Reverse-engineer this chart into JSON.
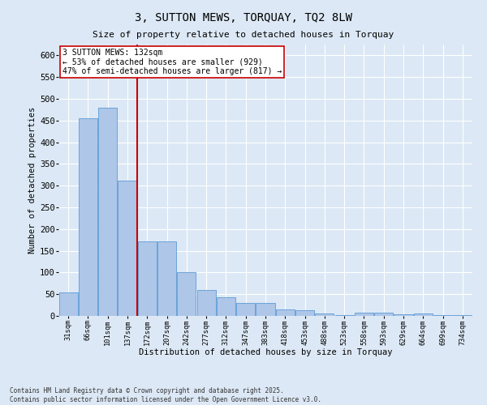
{
  "title": "3, SUTTON MEWS, TORQUAY, TQ2 8LW",
  "subtitle": "Size of property relative to detached houses in Torquay",
  "xlabel": "Distribution of detached houses by size in Torquay",
  "ylabel": "Number of detached properties",
  "footer_line1": "Contains HM Land Registry data © Crown copyright and database right 2025.",
  "footer_line2": "Contains public sector information licensed under the Open Government Licence v3.0.",
  "property_label": "3 SUTTON MEWS: 132sqm",
  "annotation_line2": "← 53% of detached houses are smaller (929)",
  "annotation_line3": "47% of semi-detached houses are larger (817) →",
  "bar_labels": [
    "31sqm",
    "66sqm",
    "101sqm",
    "137sqm",
    "172sqm",
    "207sqm",
    "242sqm",
    "277sqm",
    "312sqm",
    "347sqm",
    "383sqm",
    "418sqm",
    "453sqm",
    "488sqm",
    "523sqm",
    "558sqm",
    "593sqm",
    "629sqm",
    "664sqm",
    "699sqm",
    "734sqm"
  ],
  "bar_centers": [
    0,
    1,
    2,
    3,
    4,
    5,
    6,
    7,
    8,
    9,
    10,
    11,
    12,
    13,
    14,
    15,
    16,
    17,
    18,
    19,
    20
  ],
  "bar_values": [
    55,
    455,
    480,
    312,
    172,
    172,
    100,
    59,
    42,
    30,
    30,
    15,
    13,
    6,
    2,
    8,
    8,
    3,
    5,
    1,
    1
  ],
  "bar_color": "#aec6e8",
  "bar_edgecolor": "#5b9bd5",
  "vline_index": 3,
  "vline_color": "#cc0000",
  "annotation_box_edgecolor": "#cc0000",
  "background_color": "#dce8f5",
  "grid_color": "#ffffff",
  "ylim": [
    0,
    625
  ],
  "yticks": [
    0,
    50,
    100,
    150,
    200,
    250,
    300,
    350,
    400,
    450,
    500,
    550,
    600
  ]
}
